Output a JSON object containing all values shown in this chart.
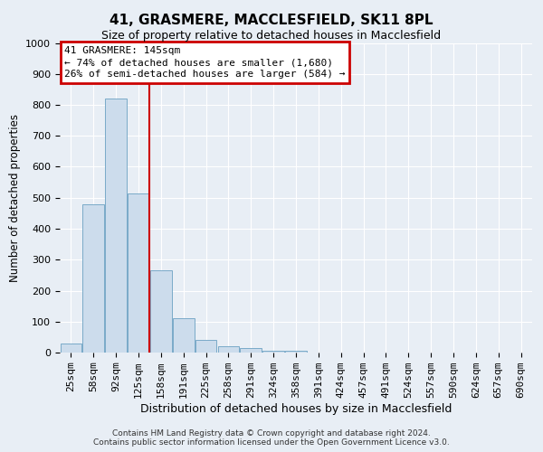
{
  "title": "41, GRASMERE, MACCLESFIELD, SK11 8PL",
  "subtitle": "Size of property relative to detached houses in Macclesfield",
  "xlabel": "Distribution of detached houses by size in Macclesfield",
  "ylabel": "Number of detached properties",
  "footnote1": "Contains HM Land Registry data © Crown copyright and database right 2024.",
  "footnote2": "Contains public sector information licensed under the Open Government Licence v3.0.",
  "bar_labels": [
    "25sqm",
    "58sqm",
    "92sqm",
    "125sqm",
    "158sqm",
    "191sqm",
    "225sqm",
    "258sqm",
    "291sqm",
    "324sqm",
    "358sqm",
    "391sqm",
    "424sqm",
    "457sqm",
    "491sqm",
    "524sqm",
    "557sqm",
    "590sqm",
    "624sqm",
    "657sqm",
    "690sqm"
  ],
  "bar_values": [
    30,
    480,
    820,
    515,
    265,
    110,
    40,
    20,
    15,
    5,
    5,
    0,
    0,
    0,
    0,
    0,
    0,
    0,
    0,
    0,
    0
  ],
  "bar_color": "#ccdcec",
  "bar_edge_color": "#7aaac8",
  "vline_color": "#cc0000",
  "vline_pos": 3.5,
  "annotation_title": "41 GRASMERE: 145sqm",
  "annotation_line1": "← 74% of detached houses are smaller (1,680)",
  "annotation_line2": "26% of semi-detached houses are larger (584) →",
  "annotation_box_facecolor": "#ffffff",
  "annotation_box_edgecolor": "#cc0000",
  "ylim": [
    0,
    1000
  ],
  "yticks": [
    0,
    100,
    200,
    300,
    400,
    500,
    600,
    700,
    800,
    900,
    1000
  ],
  "background_color": "#e8eef5",
  "plot_bg_color": "#e8eef5",
  "grid_color": "#ffffff",
  "title_fontsize": 11,
  "subtitle_fontsize": 9,
  "xlabel_fontsize": 9,
  "ylabel_fontsize": 8.5,
  "tick_fontsize": 8,
  "annotation_fontsize": 8,
  "footnote_fontsize": 6.5
}
